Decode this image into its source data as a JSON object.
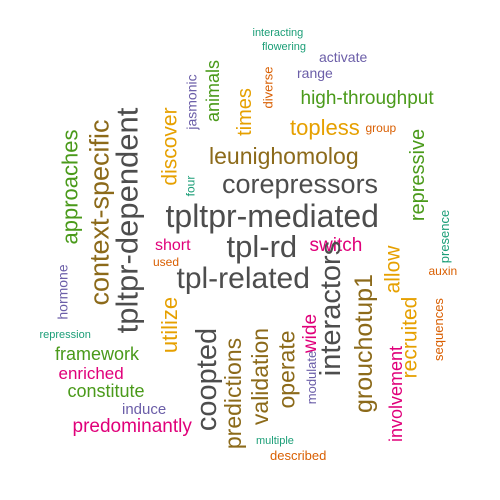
{
  "colors": {
    "dark_gray": "#4d4d4d",
    "green": "#4a9a1a",
    "gold": "#e6a000",
    "brown": "#8c6a1a",
    "magenta": "#e0007a",
    "slate_blue": "#6b5ea8",
    "teal": "#1b9e77",
    "orange": "#d95f02"
  },
  "words": [
    {
      "text": "tpltpr-mediated",
      "color": "dark_gray",
      "vertical": false
    },
    {
      "text": "tpl-rd",
      "color": "dark_gray",
      "vertical": false
    },
    {
      "text": "tpl-related",
      "color": "dark_gray",
      "vertical": false
    },
    {
      "text": "corepressors",
      "color": "dark_gray",
      "vertical": false
    },
    {
      "text": "leunighomolog",
      "color": "brown",
      "vertical": false
    },
    {
      "text": "high-throughput",
      "color": "green",
      "vertical": false
    },
    {
      "text": "topless",
      "color": "gold",
      "vertical": false
    },
    {
      "text": "group",
      "color": "orange",
      "vertical": false
    },
    {
      "text": "range",
      "color": "slate_blue",
      "vertical": false
    },
    {
      "text": "activate",
      "color": "slate_blue",
      "vertical": false
    },
    {
      "text": "flowering",
      "color": "teal",
      "vertical": false
    },
    {
      "text": "interacting",
      "color": "teal",
      "vertical": false
    },
    {
      "text": "switch",
      "color": "magenta",
      "vertical": false
    },
    {
      "text": "short",
      "color": "magenta",
      "vertical": false
    },
    {
      "text": "used",
      "color": "orange",
      "vertical": false
    },
    {
      "text": "auxin",
      "color": "orange",
      "vertical": false
    },
    {
      "text": "framework",
      "color": "green",
      "vertical": false
    },
    {
      "text": "enriched",
      "color": "magenta",
      "vertical": false
    },
    {
      "text": "constitute",
      "color": "green",
      "vertical": false
    },
    {
      "text": "induce",
      "color": "slate_blue",
      "vertical": false
    },
    {
      "text": "predominantly",
      "color": "magenta",
      "vertical": false
    },
    {
      "text": "repression",
      "color": "teal",
      "vertical": false
    },
    {
      "text": "multiple",
      "color": "teal",
      "vertical": false
    },
    {
      "text": "described",
      "color": "orange",
      "vertical": false
    },
    {
      "text": "tpltpr-dependent",
      "color": "dark_gray",
      "vertical": true
    },
    {
      "text": "context-specific",
      "color": "brown",
      "vertical": true
    },
    {
      "text": "approaches",
      "color": "green",
      "vertical": true
    },
    {
      "text": "hormone",
      "color": "slate_blue",
      "vertical": true
    },
    {
      "text": "discover",
      "color": "gold",
      "vertical": true
    },
    {
      "text": "jasmonic",
      "color": "slate_blue",
      "vertical": true
    },
    {
      "text": "animals",
      "color": "green",
      "vertical": true
    },
    {
      "text": "four",
      "color": "teal",
      "vertical": true
    },
    {
      "text": "times",
      "color": "gold",
      "vertical": true
    },
    {
      "text": "diverse",
      "color": "orange",
      "vertical": true
    },
    {
      "text": "utilize",
      "color": "gold",
      "vertical": true
    },
    {
      "text": "coopted",
      "color": "dark_gray",
      "vertical": true
    },
    {
      "text": "predictions",
      "color": "brown",
      "vertical": true
    },
    {
      "text": "validation",
      "color": "brown",
      "vertical": true
    },
    {
      "text": "operate",
      "color": "brown",
      "vertical": true
    },
    {
      "text": "wide",
      "color": "magenta",
      "vertical": true
    },
    {
      "text": "modulate",
      "color": "slate_blue",
      "vertical": true
    },
    {
      "text": "interactors",
      "color": "dark_gray",
      "vertical": true
    },
    {
      "text": "grouchotup1",
      "color": "brown",
      "vertical": true
    },
    {
      "text": "allow",
      "color": "gold",
      "vertical": true
    },
    {
      "text": "recruited",
      "color": "gold",
      "vertical": true
    },
    {
      "text": "involvement",
      "color": "magenta",
      "vertical": true
    },
    {
      "text": "repressive",
      "color": "green",
      "vertical": true
    },
    {
      "text": "presence",
      "color": "teal",
      "vertical": true
    },
    {
      "text": "sequences",
      "color": "orange",
      "vertical": true
    }
  ]
}
